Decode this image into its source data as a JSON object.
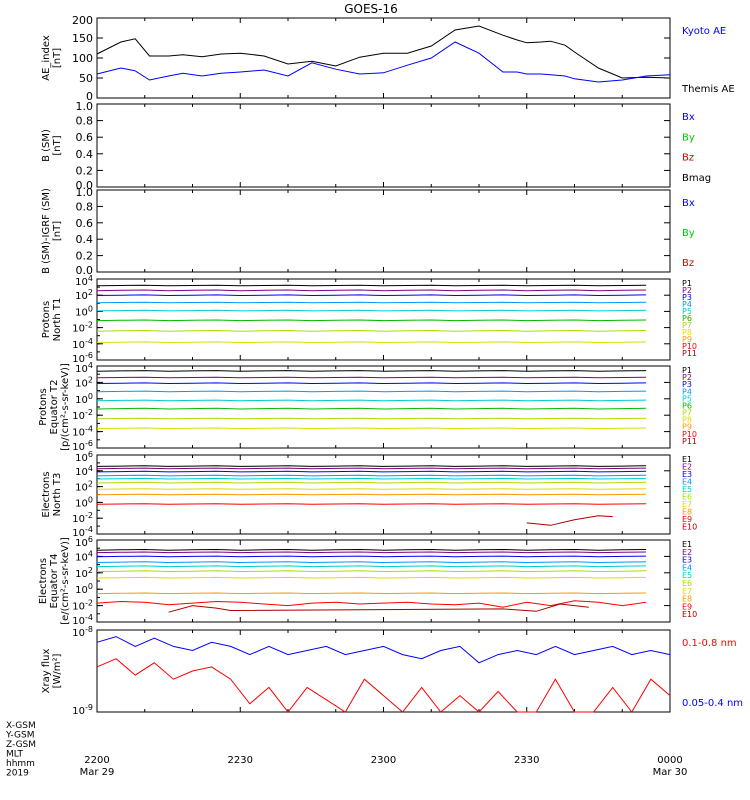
{
  "title": "GOES-16",
  "panels": [
    {
      "id": "ae",
      "ylabel_lines": [
        "AE_index",
        "[nT]"
      ],
      "scale": "linear",
      "ylim": [
        0,
        200
      ],
      "tick_labels": [
        "0",
        "50",
        "100",
        "150",
        "200"
      ],
      "legend": [
        {
          "text": "Kyoto AE",
          "color": "#0000ff"
        },
        {
          "text": "Themis AE",
          "color": "#000000"
        }
      ]
    },
    {
      "id": "b_sm",
      "ylabel_lines": [
        "B (SM)",
        "[nT]"
      ],
      "scale": "linear",
      "ylim": [
        0,
        1
      ],
      "tick_labels": [
        "0.0",
        "0.2",
        "0.4",
        "0.6",
        "0.8",
        "1.0"
      ],
      "legend": [
        {
          "text": "Bx",
          "color": "#0000ff"
        },
        {
          "text": "By",
          "color": "#00cc00"
        },
        {
          "text": "Bz",
          "color": "#dd0000"
        },
        {
          "text": "Bmag",
          "color": "#000000"
        }
      ]
    },
    {
      "id": "b_igrf",
      "ylabel_lines": [
        "B (SM)-IGRF (SM)",
        "[nT]"
      ],
      "scale": "linear",
      "ylim": [
        0,
        1
      ],
      "tick_labels": [
        "0.0",
        "0.2",
        "0.4",
        "0.6",
        "0.8",
        "1.0"
      ],
      "legend": [
        {
          "text": "Bx",
          "color": "#0000ff"
        },
        {
          "text": "By",
          "color": "#00cc00"
        },
        {
          "text": "Bz",
          "color": "#dd0000"
        }
      ]
    },
    {
      "id": "protons_north",
      "ylabel_lines": [
        "Protons",
        "North T1"
      ],
      "scale": "log",
      "ylim_exp": [
        -6,
        4
      ],
      "tick_exps": [
        -6,
        -4,
        -2,
        0,
        2,
        4
      ],
      "legend_small": true,
      "legend": [
        {
          "text": "P1",
          "color": "#000000"
        },
        {
          "text": "P2",
          "color": "#800080"
        },
        {
          "text": "P3",
          "color": "#0000ff"
        },
        {
          "text": "P4",
          "color": "#0099ff"
        },
        {
          "text": "P5",
          "color": "#00cccc"
        },
        {
          "text": "P6",
          "color": "#00bb00"
        },
        {
          "text": "P7",
          "color": "#aadd00"
        },
        {
          "text": "P8",
          "color": "#dddd00"
        },
        {
          "text": "P9",
          "color": "#ff9900"
        },
        {
          "text": "P10",
          "color": "#ff0000"
        },
        {
          "text": "P11",
          "color": "#aa0000"
        }
      ]
    },
    {
      "id": "protons_equator",
      "ylabel_lines": [
        "Protons",
        "Equator T2",
        "[p/(cm²-s-sr-keV)]"
      ],
      "scale": "log",
      "ylim_exp": [
        -6,
        4
      ],
      "tick_exps": [
        -6,
        -4,
        -2,
        0,
        2,
        4
      ],
      "legend_small": true,
      "legend": [
        {
          "text": "P1",
          "color": "#000000"
        },
        {
          "text": "P2",
          "color": "#800080"
        },
        {
          "text": "P3",
          "color": "#0000ff"
        },
        {
          "text": "P4",
          "color": "#0099ff"
        },
        {
          "text": "P5",
          "color": "#00cccc"
        },
        {
          "text": "P6",
          "color": "#00bb00"
        },
        {
          "text": "P7",
          "color": "#aadd00"
        },
        {
          "text": "P8",
          "color": "#dddd00"
        },
        {
          "text": "P9",
          "color": "#ff9900"
        },
        {
          "text": "P10",
          "color": "#ff0000"
        },
        {
          "text": "P11",
          "color": "#aa0000"
        }
      ]
    },
    {
      "id": "electrons_north",
      "ylabel_lines": [
        "Electrons",
        "North T3"
      ],
      "scale": "log",
      "ylim_exp": [
        -4,
        6
      ],
      "tick_exps": [
        -4,
        -2,
        0,
        2,
        4,
        6
      ],
      "legend_small": true,
      "legend": [
        {
          "text": "E1",
          "color": "#000000"
        },
        {
          "text": "E2",
          "color": "#800080"
        },
        {
          "text": "E3",
          "color": "#0000ff"
        },
        {
          "text": "E4",
          "color": "#0099ff"
        },
        {
          "text": "E5",
          "color": "#00cccc"
        },
        {
          "text": "E6",
          "color": "#aadd00"
        },
        {
          "text": "E7",
          "color": "#dddd00"
        },
        {
          "text": "E8",
          "color": "#ff9900"
        },
        {
          "text": "E9",
          "color": "#ff0000"
        },
        {
          "text": "E10",
          "color": "#aa0000"
        }
      ]
    },
    {
      "id": "electrons_equator",
      "ylabel_lines": [
        "Electrons",
        "Equator T4",
        "[e/(cm²-s-sr-keV)]"
      ],
      "scale": "log",
      "ylim_exp": [
        -4,
        6
      ],
      "tick_exps": [
        -4,
        -2,
        0,
        2,
        4,
        6
      ],
      "legend_small": true,
      "legend": [
        {
          "text": "E1",
          "color": "#000000"
        },
        {
          "text": "E2",
          "color": "#800080"
        },
        {
          "text": "E3",
          "color": "#0000ff"
        },
        {
          "text": "E4",
          "color": "#0099ff"
        },
        {
          "text": "E5",
          "color": "#00cccc"
        },
        {
          "text": "E6",
          "color": "#aadd00"
        },
        {
          "text": "E7",
          "color": "#dddd00"
        },
        {
          "text": "E8",
          "color": "#ff9900"
        },
        {
          "text": "E9",
          "color": "#ff0000"
        },
        {
          "text": "E10",
          "color": "#aa0000"
        }
      ]
    },
    {
      "id": "xray",
      "ylabel_lines": [
        "Xray flux",
        "[W/m²]"
      ],
      "scale": "log",
      "ylim_exp": [
        -9,
        -8
      ],
      "tick_exps": [
        -9,
        -8
      ],
      "legend": [
        {
          "text": "0.1-0.8 nm",
          "color": "#ff0000"
        },
        {
          "text": "0.05-0.4 nm",
          "color": "#0000ff"
        }
      ]
    }
  ],
  "x_axis": {
    "ticks": [
      {
        "time": "2200",
        "date": "Mar 29"
      },
      {
        "time": "2230",
        "date": ""
      },
      {
        "time": "2300",
        "date": ""
      },
      {
        "time": "2330",
        "date": ""
      },
      {
        "time": "0000",
        "date": "Mar 30"
      }
    ],
    "row_labels": [
      "X-GSM",
      "Y-GSM",
      "Z-GSM",
      "MLT",
      "hhmm",
      "2019"
    ]
  },
  "chart_data": {
    "type": "line",
    "title": "GOES-16",
    "x_unit": "minutes after 2019-03-29 22:00 UT",
    "xlim": [
      0,
      120
    ],
    "ae": {
      "x": [
        0,
        5,
        8,
        11,
        15,
        18,
        22,
        26,
        30,
        35,
        40,
        45,
        50,
        55,
        60,
        65,
        70,
        75,
        80,
        85,
        88,
        90,
        93,
        95,
        98,
        100,
        105,
        110,
        115,
        120
      ],
      "series": [
        {
          "name": "Themis AE",
          "color": "#000000",
          "values": [
            110,
            140,
            148,
            105,
            105,
            108,
            103,
            110,
            112,
            105,
            85,
            92,
            80,
            102,
            112,
            112,
            130,
            170,
            180,
            157,
            145,
            138,
            140,
            142,
            132,
            115,
            75,
            50,
            52,
            50
          ]
        },
        {
          "name": "Kyoto AE",
          "color": "#0000ff",
          "values": [
            60,
            75,
            68,
            45,
            55,
            62,
            55,
            62,
            65,
            70,
            55,
            88,
            72,
            60,
            63,
            82,
            100,
            140,
            112,
            65,
            65,
            60,
            60,
            58,
            55,
            48,
            40,
            45,
            55,
            58
          ]
        }
      ]
    },
    "protons_north": {
      "series": [
        {
          "name": "P1",
          "color": "#000000",
          "log10": 3.2
        },
        {
          "name": "P2",
          "color": "#800080",
          "log10": 2.6
        },
        {
          "name": "P3",
          "color": "#0000ff",
          "log10": 2.0
        },
        {
          "name": "P4",
          "color": "#0099ff",
          "log10": 1.1
        },
        {
          "name": "P5",
          "color": "#00cccc",
          "log10": 0.1
        },
        {
          "name": "P6",
          "color": "#00bb00",
          "log10": -1.1
        },
        {
          "name": "P7",
          "color": "#aadd00",
          "log10": -2.4
        },
        {
          "name": "P8",
          "color": "#dddd00",
          "log10": -3.8
        }
      ]
    },
    "protons_equator": {
      "series": [
        {
          "name": "P1",
          "color": "#000000",
          "log10": 3.4
        },
        {
          "name": "P2",
          "color": "#800080",
          "log10": 2.6
        },
        {
          "name": "P3",
          "color": "#0000ff",
          "log10": 1.9
        },
        {
          "name": "P4",
          "color": "#0099ff",
          "log10": 0.9
        },
        {
          "name": "P5",
          "color": "#00cccc",
          "log10": -0.2
        },
        {
          "name": "P6",
          "color": "#00bb00",
          "log10": -1.2
        },
        {
          "name": "P7",
          "color": "#aadd00",
          "log10": -2.4
        },
        {
          "name": "P8",
          "color": "#dddd00",
          "log10": -3.6
        }
      ]
    },
    "electrons_north": {
      "series": [
        {
          "name": "E1",
          "color": "#000000",
          "log10": 4.6
        },
        {
          "name": "E2",
          "color": "#800080",
          "log10": 4.3
        },
        {
          "name": "E3",
          "color": "#0000ff",
          "log10": 3.9
        },
        {
          "name": "E4",
          "color": "#0099ff",
          "log10": 3.4
        },
        {
          "name": "E5",
          "color": "#00cccc",
          "log10": 3.0
        },
        {
          "name": "E6",
          "color": "#aadd00",
          "log10": 2.5
        },
        {
          "name": "E7",
          "color": "#dddd00",
          "log10": 1.7
        },
        {
          "name": "E8",
          "color": "#ff9900",
          "log10": 1.0
        },
        {
          "name": "E9",
          "color": "#ff0000",
          "log10": -0.2
        }
      ],
      "e10_x": [
        90,
        95,
        100,
        105,
        108
      ],
      "e10_log10": [
        -2.6,
        -2.9,
        -2.2,
        -1.7,
        -1.8
      ]
    },
    "electrons_equator": {
      "series": [
        {
          "name": "E1",
          "color": "#000000",
          "log10": 4.8
        },
        {
          "name": "E2",
          "color": "#800080",
          "log10": 4.5
        },
        {
          "name": "E3",
          "color": "#0000ff",
          "log10": 4.0
        },
        {
          "name": "E4",
          "color": "#0099ff",
          "log10": 3.3
        },
        {
          "name": "E5",
          "color": "#00cccc",
          "log10": 2.8
        },
        {
          "name": "E6",
          "color": "#aadd00",
          "log10": 2.2
        },
        {
          "name": "E7",
          "color": "#dddd00",
          "log10": 1.4
        },
        {
          "name": "E8",
          "color": "#ff9900",
          "log10": -0.5
        }
      ],
      "e9_x": [
        0,
        5,
        10,
        15,
        20,
        25,
        30,
        35,
        40,
        45,
        50,
        55,
        60,
        65,
        70,
        75,
        80,
        85,
        90,
        95,
        100,
        105,
        110,
        115
      ],
      "e9_log10": [
        -1.7,
        -1.5,
        -1.6,
        -1.9,
        -1.7,
        -1.5,
        -1.6,
        -1.8,
        -2.0,
        -1.7,
        -1.6,
        -1.8,
        -1.7,
        -1.6,
        -1.8,
        -1.9,
        -1.7,
        -2.2,
        -1.6,
        -2.0,
        -1.4,
        -1.6,
        -2.0,
        -1.6
      ],
      "e10_x": [
        15,
        20,
        25,
        28,
        85,
        92,
        97,
        103
      ],
      "e10_log10": [
        -2.8,
        -2.0,
        -2.3,
        -2.6,
        -2.4,
        -2.7,
        -1.8,
        -2.2
      ]
    },
    "xray": {
      "x": [
        0,
        4,
        8,
        12,
        16,
        20,
        24,
        28,
        32,
        36,
        40,
        44,
        48,
        52,
        56,
        60,
        64,
        68,
        72,
        76,
        80,
        84,
        88,
        92,
        96,
        100,
        104,
        108,
        112,
        116,
        120
      ],
      "series": [
        {
          "name": "0.05-0.4 nm",
          "color": "#0000ff",
          "log10": [
            -8.15,
            -8.08,
            -8.2,
            -8.1,
            -8.2,
            -8.25,
            -8.15,
            -8.2,
            -8.3,
            -8.2,
            -8.3,
            -8.25,
            -8.2,
            -8.3,
            -8.25,
            -8.2,
            -8.3,
            -8.35,
            -8.25,
            -8.2,
            -8.4,
            -8.3,
            -8.25,
            -8.3,
            -8.2,
            -8.3,
            -8.25,
            -8.2,
            -8.3,
            -8.25,
            -8.3
          ]
        },
        {
          "name": "0.1-0.8 nm",
          "color": "#ff0000",
          "log10": [
            -8.45,
            -8.35,
            -8.55,
            -8.4,
            -8.6,
            -8.5,
            -8.45,
            -8.6,
            -8.9,
            -8.7,
            -9.0,
            -8.7,
            -8.85,
            -9.0,
            -8.6,
            -8.8,
            -9.0,
            -8.7,
            -9.0,
            -8.8,
            -9.0,
            -8.75,
            -9.0,
            -9.0,
            -8.6,
            -9.0,
            -9.0,
            -8.7,
            -9.0,
            -8.6,
            -8.8
          ]
        }
      ]
    }
  }
}
